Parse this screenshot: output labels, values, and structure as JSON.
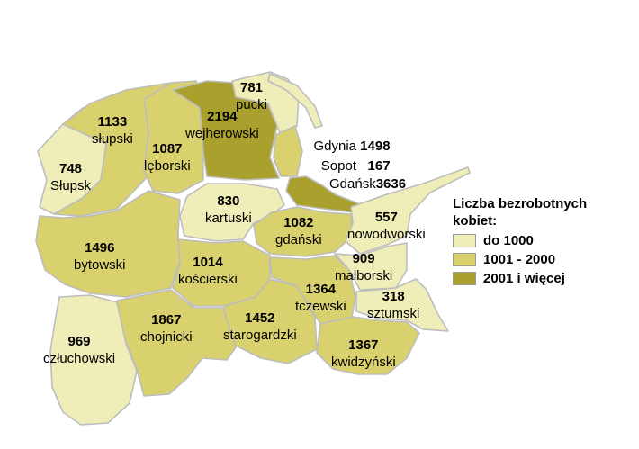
{
  "palette": {
    "low": "#efedb8",
    "mid": "#d9d06e",
    "high": "#a9a02e",
    "border": "#bdbdbd"
  },
  "legend": {
    "title_line1": "Liczba bezrobotnych",
    "title_line2": "kobiet:",
    "items": [
      {
        "label": "do 1000",
        "color": "#efedb8"
      },
      {
        "label": "1001 - 2000",
        "color": "#d9d06e"
      },
      {
        "label": "2001 i więcej",
        "color": "#a9a02e"
      }
    ]
  },
  "regions": [
    {
      "name": "pucki",
      "value": "781",
      "class": "low"
    },
    {
      "name": "wejherowski",
      "value": "2194",
      "class": "high"
    },
    {
      "name": "słupski",
      "value": "1133",
      "class": "mid"
    },
    {
      "name": "lęborski",
      "value": "1087",
      "class": "mid"
    },
    {
      "name": "Słupsk",
      "value": "748",
      "class": "low"
    },
    {
      "name": "kartuski",
      "value": "830",
      "class": "low"
    },
    {
      "name": "gdański",
      "value": "1082",
      "class": "mid"
    },
    {
      "name": "nowodworski",
      "value": "557",
      "class": "low"
    },
    {
      "name": "bytowski",
      "value": "1496",
      "class": "mid"
    },
    {
      "name": "kościerski",
      "value": "1014",
      "class": "mid"
    },
    {
      "name": "malborski",
      "value": "909",
      "class": "low"
    },
    {
      "name": "tczewski",
      "value": "1364",
      "class": "mid"
    },
    {
      "name": "sztumski",
      "value": "318",
      "class": "low"
    },
    {
      "name": "chojnicki",
      "value": "1867",
      "class": "mid"
    },
    {
      "name": "starogardzki",
      "value": "1452",
      "class": "mid"
    },
    {
      "name": "człuchowski",
      "value": "969",
      "class": "low"
    },
    {
      "name": "kwidzyński",
      "value": "1367",
      "class": "mid"
    }
  ],
  "cities": [
    {
      "name": "Gdynia",
      "value": "1498",
      "class": "mid"
    },
    {
      "name": "Sopot",
      "value": "167",
      "class": "low"
    },
    {
      "name": "Gdańsk",
      "value": "3636",
      "class": "high"
    }
  ]
}
